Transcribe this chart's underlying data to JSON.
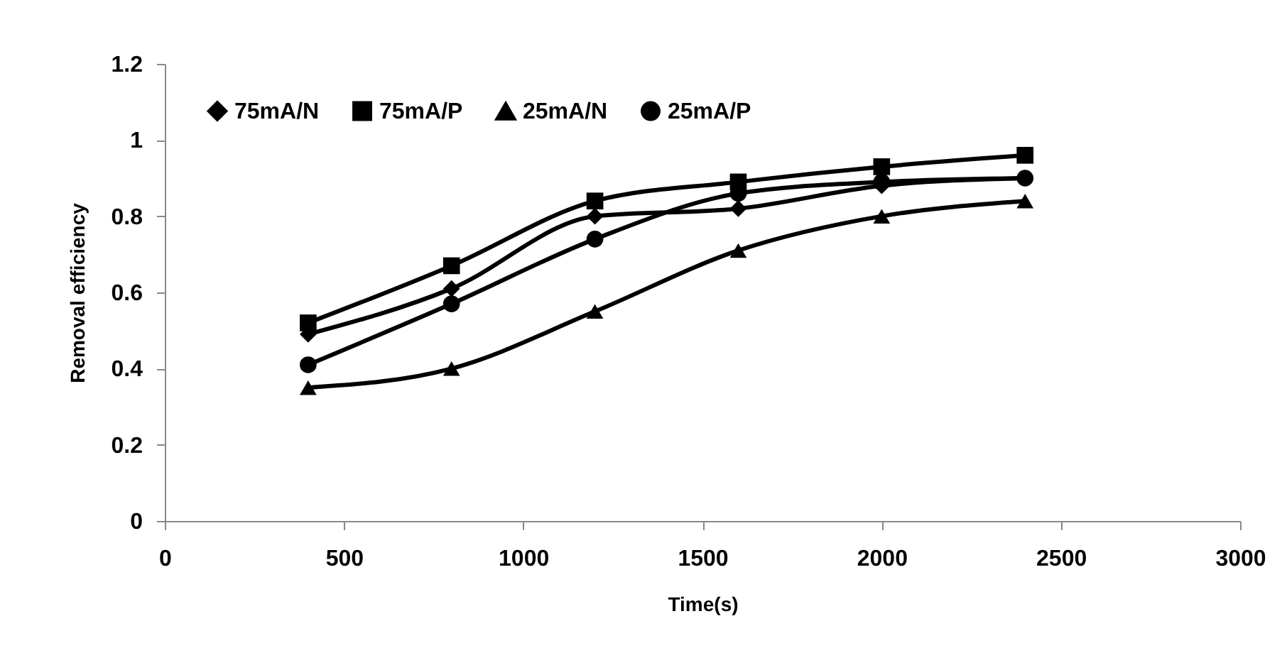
{
  "chart_data": {
    "type": "line",
    "xlabel": "Time(s)",
    "ylabel": "Removal efficiency",
    "x": [
      400,
      800,
      1200,
      1600,
      2000,
      2400
    ],
    "series": [
      {
        "name": "75mA/N",
        "color": "#000000",
        "marker": "diamond",
        "values": [
          0.49,
          0.61,
          0.8,
          0.82,
          0.88,
          0.9
        ]
      },
      {
        "name": "75mA/P",
        "color": "#000000",
        "marker": "square",
        "values": [
          0.52,
          0.67,
          0.84,
          0.89,
          0.93,
          0.96
        ]
      },
      {
        "name": "25mA/N",
        "color": "#000000",
        "marker": "triangle",
        "values": [
          0.35,
          0.4,
          0.55,
          0.71,
          0.8,
          0.84
        ]
      },
      {
        "name": "25mA/P",
        "color": "#000000",
        "marker": "circle",
        "values": [
          0.41,
          0.57,
          0.74,
          0.86,
          0.89,
          0.9
        ]
      }
    ],
    "xlim": [
      0,
      3000
    ],
    "xticks": [
      0,
      500,
      1000,
      1500,
      2000,
      2500,
      3000
    ],
    "ylim": [
      0,
      1.2
    ],
    "yticks": [
      0,
      0.2,
      0.4,
      0.6,
      0.8,
      1,
      1.2
    ],
    "grid": false,
    "legend": "top",
    "line_style": "solid"
  }
}
